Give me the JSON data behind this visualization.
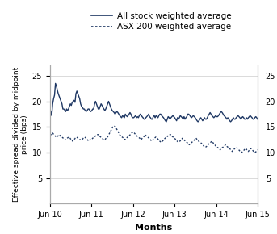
{
  "xlabel": "Months",
  "ylabel": "Effective spread divided by midpoint\nprice (bps)",
  "legend_entries": [
    "All stock weighted average",
    "ASX 200 weighted average"
  ],
  "ylim": [
    0,
    27
  ],
  "yticks": [
    5,
    10,
    15,
    20,
    25
  ],
  "xtick_labels": [
    "Jun 10",
    "Jun 11",
    "Jun 12",
    "Jun 13",
    "Jun 14",
    "Jun 15"
  ],
  "xtick_pos": [
    0,
    12,
    24,
    36,
    48,
    60
  ],
  "line_color": "#1F3864",
  "background_color": "#ffffff",
  "grid_color": "#cccccc",
  "all_stock": [
    18.5,
    18.0,
    17.2,
    19.5,
    20.5,
    21.2,
    23.5,
    23.0,
    22.2,
    21.5,
    21.0,
    20.5,
    20.0,
    19.5,
    18.5,
    18.5,
    18.3,
    18.0,
    18.5,
    18.2,
    18.5,
    19.0,
    19.5,
    19.2,
    19.8,
    20.0,
    20.2,
    19.8,
    21.5,
    22.0,
    21.5,
    21.0,
    20.5,
    19.5,
    19.0,
    18.8,
    18.5,
    18.5,
    18.2,
    18.0,
    18.2,
    18.5,
    18.5,
    18.2,
    18.0,
    18.2,
    18.5,
    18.5,
    19.5,
    20.0,
    19.5,
    19.0,
    18.5,
    18.5,
    19.0,
    19.5,
    19.2,
    18.8,
    18.5,
    18.2,
    18.5,
    19.0,
    19.5,
    20.0,
    19.5,
    19.0,
    18.5,
    18.2,
    18.0,
    17.8,
    17.5,
    17.8,
    18.0,
    17.8,
    17.5,
    17.2,
    17.0,
    16.8,
    17.2,
    17.0,
    16.8,
    17.5,
    17.2,
    17.0,
    17.2,
    17.5,
    17.8,
    17.5,
    17.0,
    16.8,
    16.8,
    17.0,
    17.2,
    16.8,
    17.0,
    16.8,
    17.2,
    17.5,
    17.3,
    17.0,
    16.8,
    16.5,
    16.5,
    16.8,
    17.0,
    17.2,
    17.5,
    17.0,
    16.8,
    16.5,
    16.5,
    17.0,
    17.2,
    16.8,
    17.2,
    17.0,
    16.8,
    17.2,
    17.5,
    17.5,
    17.2,
    17.0,
    16.8,
    16.5,
    16.2,
    16.0,
    16.5,
    17.0,
    16.8,
    16.5,
    16.8,
    17.0,
    17.2,
    17.0,
    16.8,
    16.5,
    16.2,
    16.8,
    16.5,
    16.8,
    17.2,
    17.0,
    16.8,
    16.5,
    17.0,
    16.5,
    16.8,
    17.0,
    17.5,
    17.5,
    17.3,
    17.0,
    16.8,
    17.0,
    17.2,
    17.0,
    16.8,
    16.5,
    16.2,
    16.0,
    16.2,
    16.5,
    16.8,
    16.5,
    16.2,
    16.5,
    16.8,
    16.5,
    16.5,
    16.8,
    17.2,
    17.5,
    17.8,
    17.5,
    17.2,
    17.0,
    16.8,
    17.0,
    17.2,
    17.0,
    17.0,
    17.2,
    17.5,
    17.8,
    18.0,
    17.8,
    17.5,
    17.2,
    17.0,
    16.8,
    16.5,
    16.8,
    16.5,
    16.2,
    16.0,
    16.2,
    16.5,
    16.8,
    16.5,
    16.5,
    16.8,
    17.0,
    17.2,
    17.0,
    16.8,
    16.5,
    16.8,
    17.0,
    16.8,
    16.5,
    16.5,
    16.8,
    16.5,
    16.8,
    17.0,
    17.2,
    17.0,
    16.8,
    16.5,
    16.5,
    16.8,
    17.0,
    16.8,
    16.5
  ],
  "asx200": [
    13.5,
    13.5,
    13.8,
    13.5,
    13.2,
    13.0,
    13.2,
    13.5,
    13.2,
    13.0,
    12.8,
    12.5,
    12.5,
    12.8,
    13.0,
    12.8,
    12.5,
    12.2,
    12.5,
    12.8,
    13.0,
    12.8,
    12.5,
    12.5,
    12.5,
    12.8,
    13.0,
    12.8,
    12.5,
    12.2,
    12.5,
    12.5,
    12.8,
    13.0,
    13.2,
    13.5,
    13.5,
    13.2,
    13.0,
    12.8,
    12.5,
    12.5,
    12.8,
    13.0,
    13.5,
    14.0,
    14.5,
    15.0,
    15.2,
    15.0,
    14.5,
    14.0,
    13.5,
    13.2,
    13.0,
    12.8,
    12.5,
    12.8,
    13.0,
    13.2,
    13.5,
    13.8,
    14.0,
    13.8,
    13.5,
    13.2,
    13.0,
    12.8,
    12.5,
    12.8,
    13.0,
    13.5,
    13.2,
    13.0,
    12.8,
    12.5,
    12.2,
    12.5,
    12.8,
    13.0,
    12.8,
    12.5,
    12.2,
    12.0,
    12.2,
    12.5,
    12.8,
    13.0,
    13.2,
    13.5,
    13.5,
    13.2,
    13.0,
    12.8,
    12.5,
    12.2,
    12.0,
    12.2,
    12.5,
    12.8,
    12.5,
    12.2,
    12.0,
    11.8,
    11.5,
    11.8,
    12.0,
    12.2,
    12.5,
    12.8,
    12.5,
    12.2,
    12.0,
    11.8,
    11.5,
    11.2,
    11.0,
    11.2,
    11.5,
    11.8,
    12.0,
    12.2,
    11.8,
    11.5,
    11.2,
    11.0,
    10.8,
    10.5,
    10.8,
    11.0,
    11.2,
    11.5,
    11.2,
    11.0,
    10.8,
    10.5,
    10.2,
    10.5,
    10.8,
    11.0,
    10.8,
    10.5,
    10.2,
    10.0,
    10.2,
    10.5,
    10.8,
    10.5,
    10.2,
    10.5,
    10.8,
    10.5,
    10.2,
    10.0,
    10.2,
    10.5
  ]
}
